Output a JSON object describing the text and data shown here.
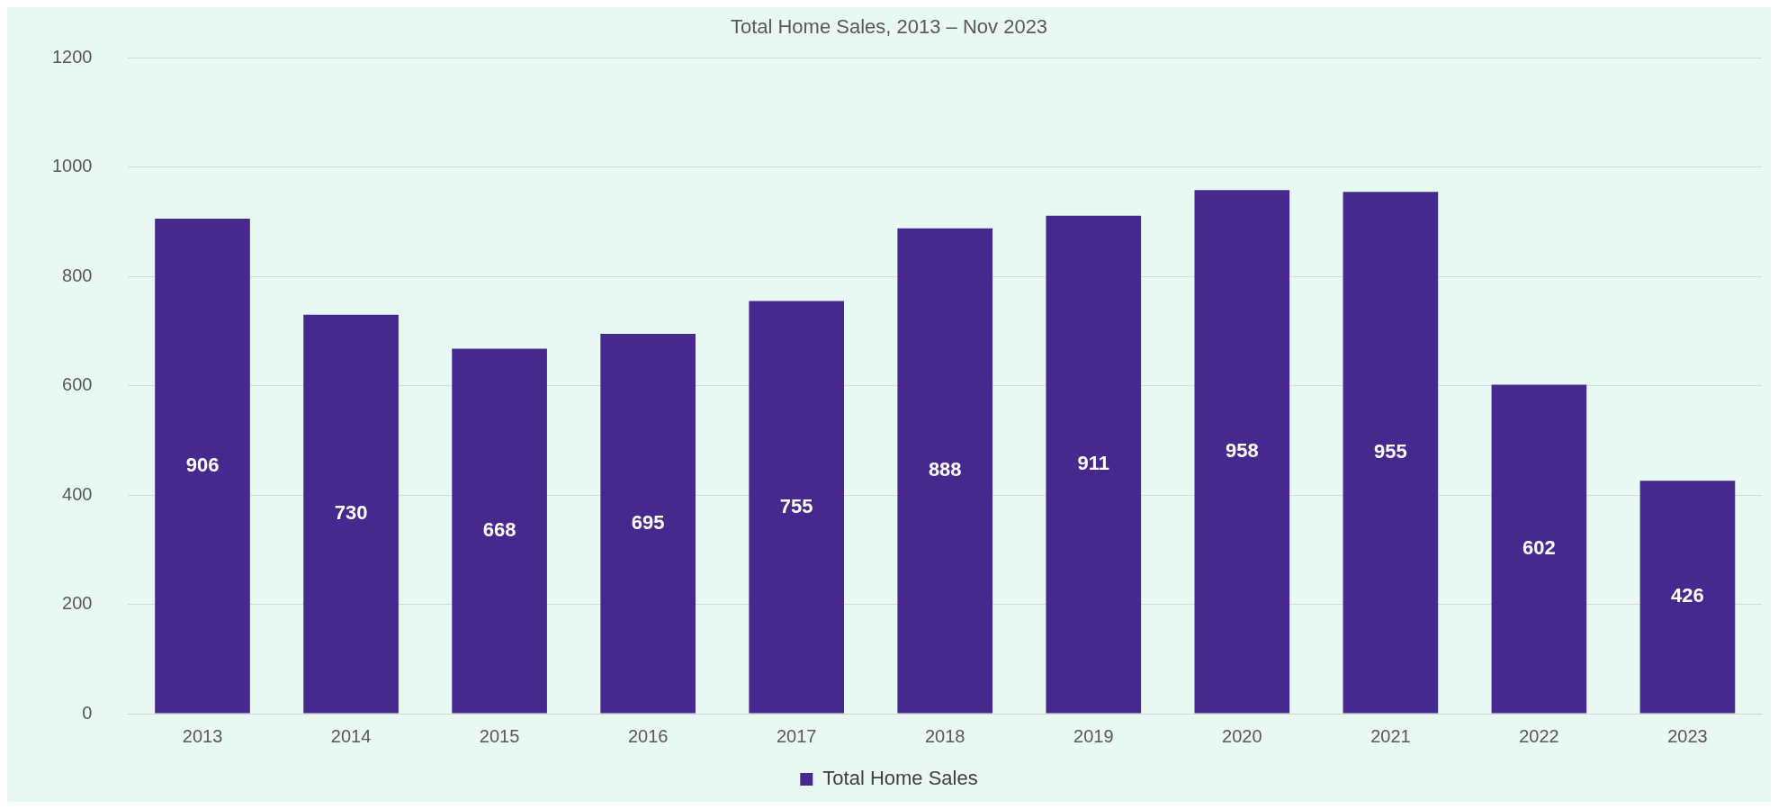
{
  "chart_data": {
    "type": "bar",
    "title": "Total Home Sales, 2013 – Nov 2023",
    "categories": [
      "2013",
      "2014",
      "2015",
      "2016",
      "2017",
      "2018",
      "2019",
      "2020",
      "2021",
      "2022",
      "2023"
    ],
    "series": [
      {
        "name": "Total Home Sales",
        "color": "#45298f",
        "values": [
          906,
          730,
          668,
          695,
          755,
          888,
          911,
          958,
          955,
          602,
          426
        ]
      }
    ],
    "ylim": [
      0,
      1200
    ],
    "yticks": [
      0,
      200,
      400,
      600,
      800,
      1000,
      1200
    ],
    "grid": "y",
    "legend": "bottom",
    "data_labels": true
  }
}
